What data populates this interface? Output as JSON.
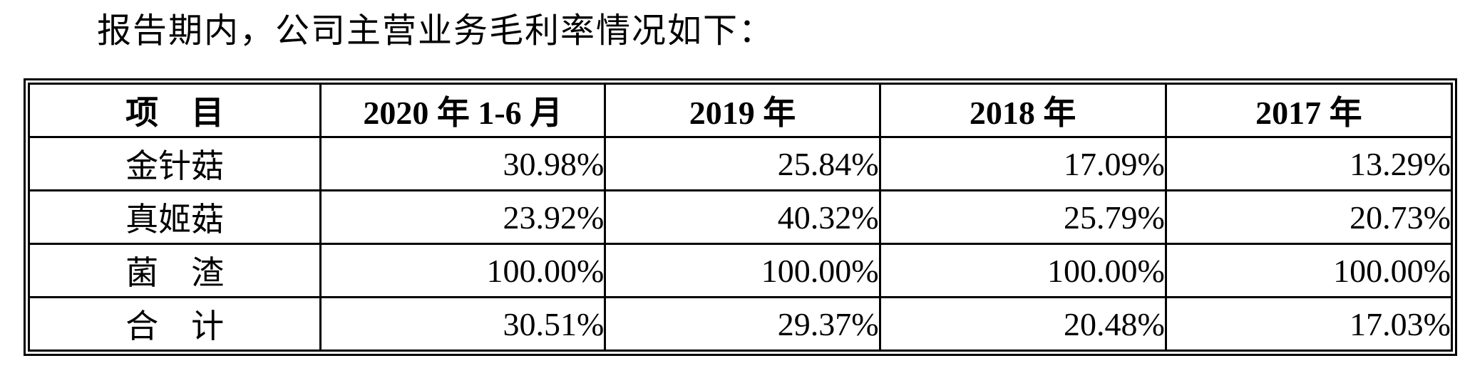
{
  "page": {
    "background": "#ffffff",
    "text_color": "#000000",
    "border_color": "#000000"
  },
  "intro": {
    "text": "报告期内，公司主营业务毛利率情况如下："
  },
  "table": {
    "columns": [
      "项　目",
      "2020 年 1-6 月",
      "2019 年",
      "2018 年",
      "2017 年"
    ],
    "rows": [
      {
        "label": "金针菇",
        "values": [
          "30.98%",
          "25.84%",
          "17.09%",
          "13.29%"
        ]
      },
      {
        "label": "真姬菇",
        "values": [
          "23.92%",
          "40.32%",
          "25.79%",
          "20.73%"
        ]
      },
      {
        "label": "菌　渣",
        "values": [
          "100.00%",
          "100.00%",
          "100.00%",
          "100.00%"
        ]
      },
      {
        "label": "合　计",
        "values": [
          "30.51%",
          "29.37%",
          "20.48%",
          "17.03%"
        ]
      }
    ]
  }
}
